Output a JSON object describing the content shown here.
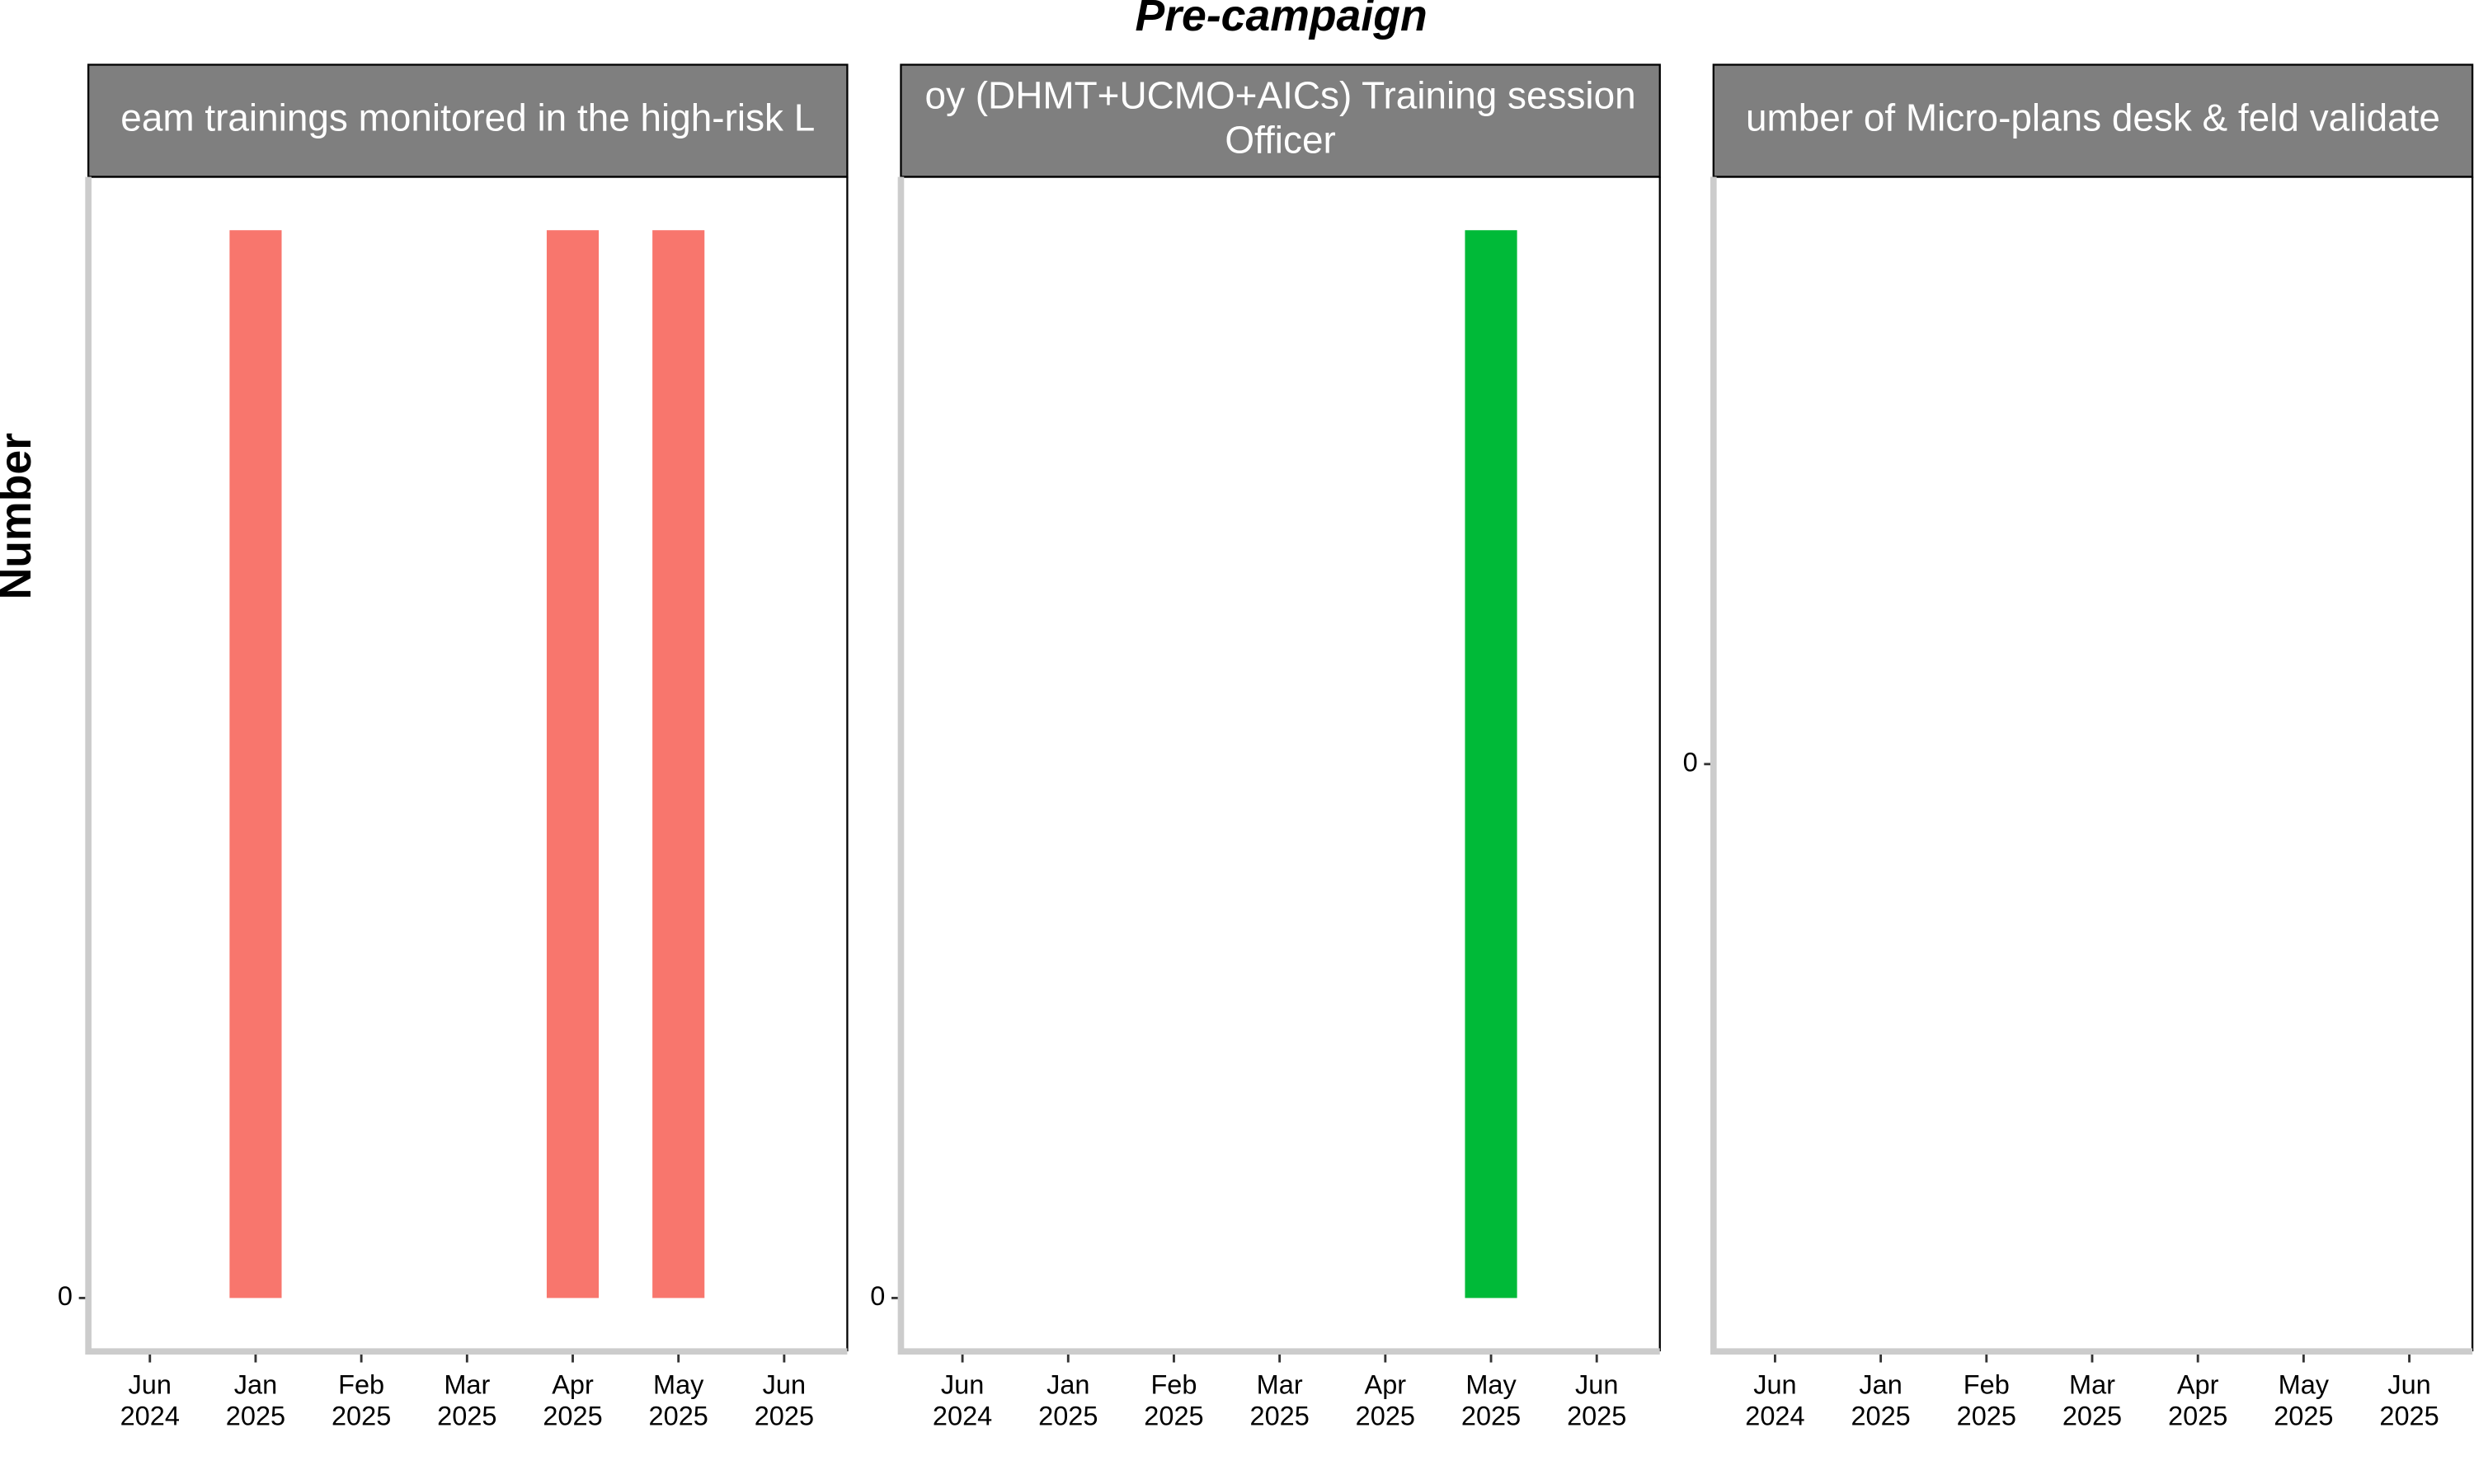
{
  "title": "Pre-campaign",
  "y_label": "Number",
  "chart_data": [
    {
      "type": "bar",
      "title": "eam trainings monitored in the high-risk L",
      "categories": [
        "Jun 2024",
        "Jan 2025",
        "Feb 2025",
        "Mar 2025",
        "Apr 2025",
        "May 2025",
        "Jun 2025"
      ],
      "values": [
        null,
        1,
        null,
        null,
        1,
        1,
        null
      ],
      "color": "#f8766d",
      "ylim": [
        -0.05,
        1.05
      ],
      "yticks": [
        0
      ]
    },
    {
      "type": "bar",
      "title": "oy (DHMT+UCMO+AICs) Training session\nOfficer",
      "categories": [
        "Jun 2024",
        "Jan 2025",
        "Feb 2025",
        "Mar 2025",
        "Apr 2025",
        "May 2025",
        "Jun 2025"
      ],
      "values": [
        null,
        null,
        null,
        null,
        null,
        1,
        null
      ],
      "color": "#00ba38",
      "ylim": [
        -0.05,
        1.05
      ],
      "yticks": [
        0
      ]
    },
    {
      "type": "bar",
      "title": "umber of Micro-plans desk & feld validate",
      "categories": [
        "Jun 2024",
        "Jan 2025",
        "Feb 2025",
        "Mar 2025",
        "Apr 2025",
        "May 2025",
        "Jun 2025"
      ],
      "values": [
        null,
        null,
        null,
        null,
        null,
        null,
        null
      ],
      "ylim": [
        -1,
        1
      ],
      "yticks": [
        0
      ]
    }
  ]
}
